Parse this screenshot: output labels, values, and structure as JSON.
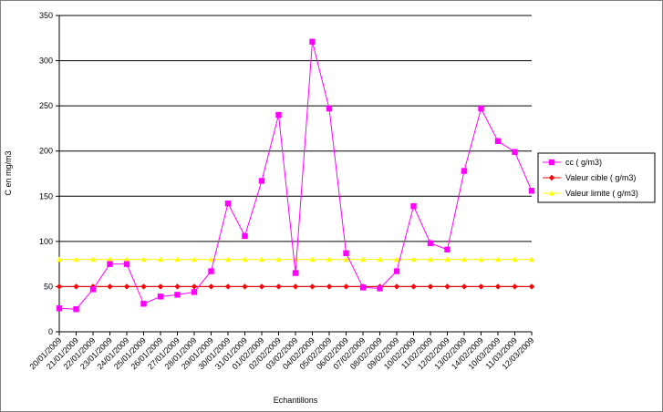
{
  "chart_data": {
    "type": "line",
    "y_label": "C en mg/m3",
    "x_label": "Echantillons",
    "categories": [
      "20/01/2009",
      "21/01/2009",
      "22/01/2009",
      "23/01/2009",
      "24/01/2009",
      "25/01/2009",
      "26/01/2009",
      "27/01/2009",
      "28/01/2009",
      "29/01/2009",
      "30/01/2009",
      "31/01/2009",
      "01/02/2009",
      "02/02/2009",
      "03/02/2009",
      "04/02/2009",
      "05/02/2009",
      "06/02/2009",
      "07/02/2009",
      "08/02/2009",
      "09/02/2009",
      "10/02/2009",
      "11/02/2009",
      "12/02/2009",
      "13/02/2009",
      "14/02/2009",
      "10/03/2009",
      "11/03/2009",
      "12/03/2009"
    ],
    "series": [
      {
        "name": "cc ( g/m3)",
        "color": "#ff00ff",
        "marker": "square",
        "values": [
          26,
          25,
          47,
          75,
          75,
          31,
          39,
          41,
          44,
          67,
          142,
          106,
          167,
          240,
          65,
          321,
          247,
          87,
          49,
          48,
          67,
          139,
          98,
          91,
          178,
          247,
          211,
          199,
          156
        ]
      },
      {
        "name": "Valeur cible ( g/m3)",
        "color": "#ff0000",
        "marker": "diamond",
        "values": [
          50,
          50,
          50,
          50,
          50,
          50,
          50,
          50,
          50,
          50,
          50,
          50,
          50,
          50,
          50,
          50,
          50,
          50,
          50,
          50,
          50,
          50,
          50,
          50,
          50,
          50,
          50,
          50,
          50
        ]
      },
      {
        "name": "Valeur limite ( g/m3)",
        "color": "#ffff00",
        "marker": "triangle",
        "values": [
          80,
          80,
          80,
          80,
          80,
          80,
          80,
          80,
          80,
          80,
          80,
          80,
          80,
          80,
          80,
          80,
          80,
          80,
          80,
          80,
          80,
          80,
          80,
          80,
          80,
          80,
          80,
          80,
          80
        ]
      }
    ],
    "ylim": [
      0,
      350
    ],
    "yticks": [
      0,
      50,
      100,
      150,
      200,
      250,
      300,
      350
    ],
    "grid": true
  }
}
